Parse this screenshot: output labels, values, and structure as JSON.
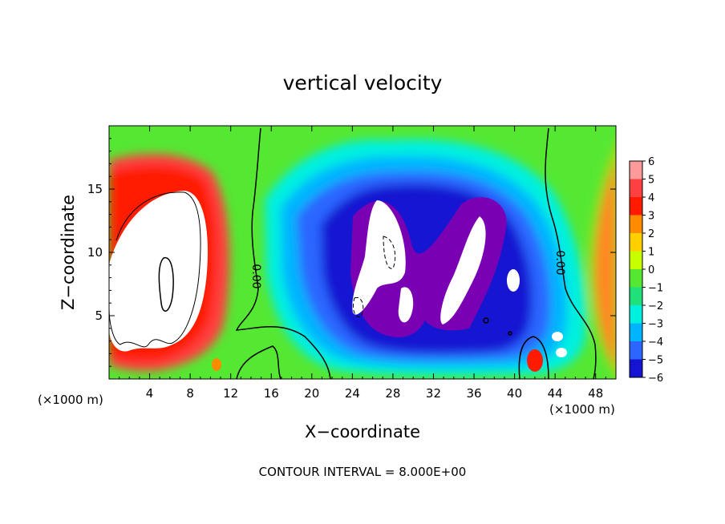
{
  "chart_data": {
    "type": "heatmap",
    "title": "vertical velocity",
    "xlabel": "X−coordinate",
    "ylabel": "Z−coordinate",
    "x_unit_left": "(×1000 m)",
    "x_unit_right": "(×1000 m)",
    "xlim": [
      0,
      50
    ],
    "ylim": [
      0,
      20
    ],
    "x_ticks": [
      4,
      8,
      12,
      16,
      20,
      24,
      28,
      32,
      36,
      40,
      44,
      48
    ],
    "y_ticks": [
      5,
      10,
      15
    ],
    "colorbar": {
      "levels": [
        6,
        5,
        4,
        3,
        2,
        1,
        0,
        -1,
        -2,
        -3,
        -4,
        -5,
        -6
      ],
      "labels": [
        "6",
        "5",
        "4",
        "3",
        "2",
        "1",
        "0",
        "−1",
        "−2",
        "−3",
        "−4",
        "−5",
        "−6"
      ],
      "colors": [
        "#ff9a9a",
        "#ff4040",
        "#ff1a00",
        "#ff8c00",
        "#ffd000",
        "#c8ff00",
        "#55e833",
        "#20e07a",
        "#00f0e0",
        "#00b4ff",
        "#2a66ff",
        "#1414d2",
        "#7a00b4"
      ]
    },
    "contour_labels": [
      "0.00",
      "0.00"
    ],
    "footer": "CONTOUR INTERVAL = 8.000E+00",
    "features": [
      {
        "kind": "updraft",
        "x": 5.5,
        "z": 9.5,
        "value": 8
      },
      {
        "kind": "downdraft",
        "x": 26,
        "z": 9,
        "value": -8
      },
      {
        "kind": "downdraft",
        "x": 34,
        "z": 8,
        "value": -8
      },
      {
        "kind": "downdraft",
        "x": 40.5,
        "z": 7.5,
        "value": -8
      },
      {
        "kind": "updraft",
        "x": 41.5,
        "z": 1.5,
        "value": 4
      }
    ]
  }
}
